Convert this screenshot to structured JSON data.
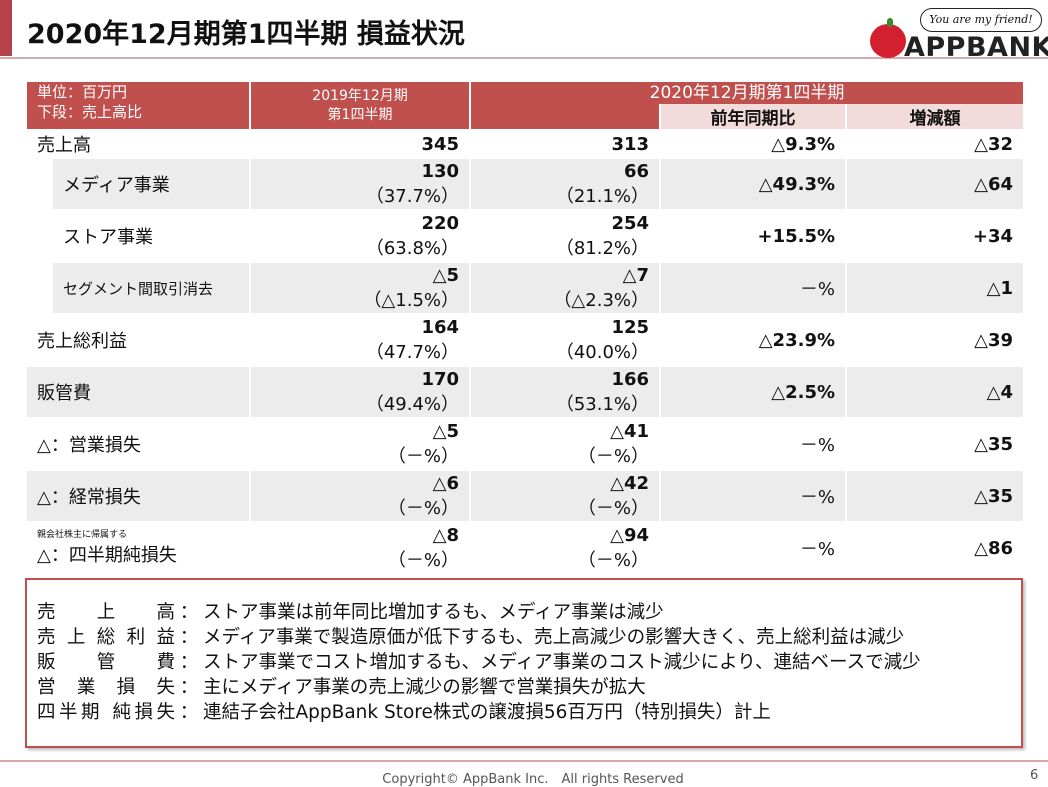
{
  "title": "2020年12月期第1四半期 損益状況",
  "logo": {
    "tagline": "You are my friend!",
    "name": "APPBANK"
  },
  "header": {
    "unit_line1": "単位：百万円",
    "unit_line2": "下段：売上高比",
    "prev_line1": "2019年12月期",
    "prev_line2": "第1四半期",
    "curr": "2020年12月期第1四半期",
    "yoy": "前年同期比",
    "diff": "増減額"
  },
  "rows": [
    {
      "label": "売上高",
      "prev": "345",
      "prev_pct": "",
      "curr": "313",
      "curr_pct": "",
      "yoy": "△9.3%",
      "diff": "△32"
    },
    {
      "label": "メディア事業",
      "prev": "130",
      "prev_pct": "（37.7%）",
      "curr": "66",
      "curr_pct": "（21.1%）",
      "yoy": "△49.3%",
      "diff": "△64"
    },
    {
      "label": "ストア事業",
      "prev": "220",
      "prev_pct": "（63.8%）",
      "curr": "254",
      "curr_pct": "（81.2%）",
      "yoy": "+15.5%",
      "diff": "+34"
    },
    {
      "label": "セグメント間取引消去",
      "prev": "△5",
      "prev_pct": "（△1.5%）",
      "curr": "△7",
      "curr_pct": "（△2.3%）",
      "yoy": "－%",
      "diff": "△1"
    },
    {
      "label": "売上総利益",
      "prev": "164",
      "prev_pct": "（47.7%）",
      "curr": "125",
      "curr_pct": "（40.0%）",
      "yoy": "△23.9%",
      "diff": "△39"
    },
    {
      "label": "販管費",
      "prev": "170",
      "prev_pct": "（49.4%）",
      "curr": "166",
      "curr_pct": "（53.1%）",
      "yoy": "△2.5%",
      "diff": "△4"
    },
    {
      "label": "△：営業損失",
      "prev": "△5",
      "prev_pct": "（－%）",
      "curr": "△41",
      "curr_pct": "（－%）",
      "yoy": "－%",
      "diff": "△35"
    },
    {
      "label": "△：経常損失",
      "prev": "△6",
      "prev_pct": "（－%）",
      "curr": "△42",
      "curr_pct": "（－%）",
      "yoy": "－%",
      "diff": "△35"
    },
    {
      "label_small": "親会社株主に帰属する",
      "label": "△：四半期純損失",
      "prev": "△8",
      "prev_pct": "（－%）",
      "curr": "△94",
      "curr_pct": "（－%）",
      "yoy": "－%",
      "diff": "△86"
    }
  ],
  "notes": [
    {
      "label": "売上高",
      "text": "ストア事業は前年同比増加するも、メディア事業は減少"
    },
    {
      "label": "売上総利益",
      "text": "メディア事業で製造原価が低下するも、売上高減少の影響大きく、売上総利益は減少"
    },
    {
      "label": "販管費",
      "text": "ストア事業でコスト増加するも、メディア事業のコスト減少により、連結ベースで減少"
    },
    {
      "label": "営業損失",
      "text": "主にメディア事業の売上減少の影響で営業損失が拡大"
    },
    {
      "label": "四半期 純損失",
      "text": "連結子会社AppBank Store株式の譲渡損56百万円（特別損失）計上"
    }
  ],
  "footer": "Copyright© AppBank Inc.　All rights Reserved",
  "page_number": "6"
}
